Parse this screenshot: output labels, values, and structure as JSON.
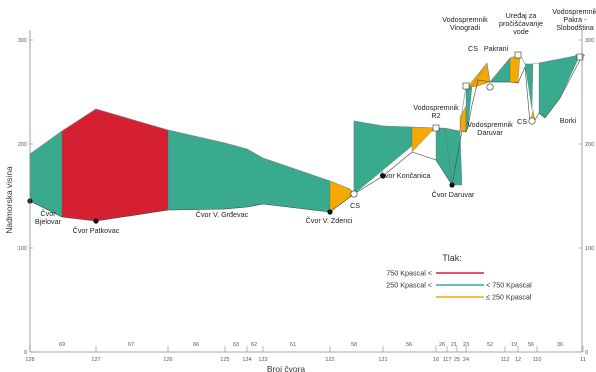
{
  "chart_data": {
    "type": "area",
    "ylabel": "Nadmorska visina",
    "xlabel": "Broj čvora",
    "yticks": [
      0,
      100,
      200,
      300
    ],
    "ylim": [
      0,
      320
    ],
    "legend": {
      "title": "Tlak:",
      "placement": "bottom-right",
      "entries": [
        {
          "label_left": "750 Kpascal <",
          "label_right": "",
          "color": "#d42030"
        },
        {
          "label_left": "250 Kpascal <",
          "label_right": "< 750 Kpascal",
          "color": "#3aaa8e"
        },
        {
          "label_left": "",
          "label_right": "≤ 250 Kpascal",
          "color": "#f5a800"
        }
      ]
    },
    "node_numbers": [
      "128",
      "127",
      "126",
      "125",
      "124",
      "123",
      "122",
      "121",
      "16",
      "117",
      "25",
      "24",
      "112",
      "12",
      "110",
      "11"
    ],
    "distances": [
      "69",
      "67",
      "66",
      "63",
      "62",
      "61",
      "58",
      "56",
      "26",
      "21",
      "23",
      "52",
      "19",
      "56",
      "36"
    ],
    "annotations": [
      "Čvor\nBjelovar",
      "Čvor Patkovac",
      "Čvor V. Grđevac",
      "Čvor V. Zdenci",
      "CS",
      "Čvor Končanica",
      "Vodospremnik\nR2",
      "Čvor Daruvar",
      "Vodospremnik\nDaruvar",
      "CS",
      "Pakrani",
      "Vodospremnik\nVinogradi",
      "Uređaj za\npročišćavanje\nvode",
      "CS",
      "Borki",
      "Vodospremnik\nPakra -\nSlobodština"
    ]
  }
}
